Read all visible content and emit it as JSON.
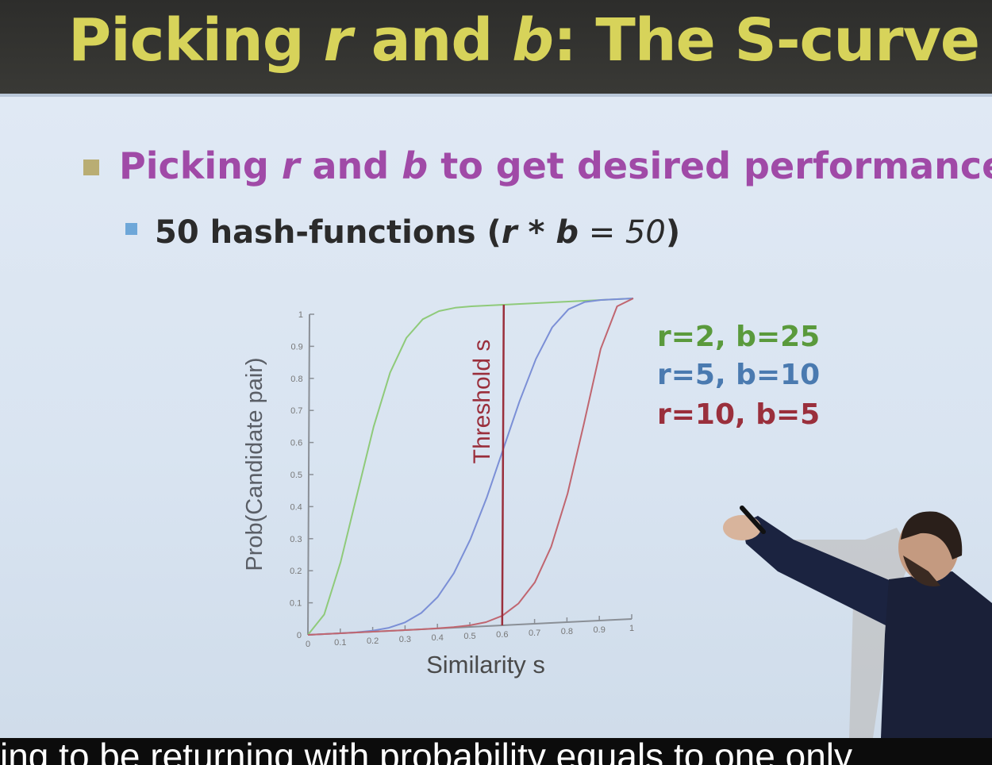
{
  "slide": {
    "title_a": "Picking ",
    "title_r": "r",
    "title_b": " and ",
    "title_bvar": "b",
    "title_c": ": The S-curve",
    "bullet1_a": "Picking ",
    "bullet1_r": "r",
    "bullet1_b": " and ",
    "bullet1_bvar": "b",
    "bullet1_c": " to get desired performance",
    "bullet2_a": "50 hash-functions (",
    "bullet2_r": "r",
    "bullet2_star": " * ",
    "bullet2_bvar": "b",
    "bullet2_eq": " = 50",
    "bullet2_close": ")"
  },
  "chart_data": {
    "type": "line",
    "xlabel": "Similarity s",
    "ylabel": "Prob(Candidate pair)",
    "xlim": [
      0,
      1
    ],
    "ylim": [
      0,
      1
    ],
    "x_ticks": [
      "0",
      "0.1",
      "0.2",
      "0.3",
      "0.4",
      "0.5",
      "0.6",
      "0.7",
      "0.8",
      "0.9",
      "1"
    ],
    "y_ticks": [
      "0",
      "0.1",
      "0.2",
      "0.3",
      "0.4",
      "0.5",
      "0.6",
      "0.7",
      "0.8",
      "0.9",
      "1"
    ],
    "x": [
      0,
      0.05,
      0.1,
      0.15,
      0.2,
      0.25,
      0.3,
      0.35,
      0.4,
      0.45,
      0.5,
      0.55,
      0.6,
      0.65,
      0.7,
      0.75,
      0.8,
      0.85,
      0.9,
      0.95,
      1
    ],
    "series": [
      {
        "name": "r=2, b=25",
        "color": "#8fca7a",
        "values": [
          0,
          0.061,
          0.222,
          0.432,
          0.64,
          0.806,
          0.912,
          0.967,
          0.99,
          0.998,
          1,
          1,
          1,
          1,
          1,
          1,
          1,
          1,
          1,
          1,
          1
        ]
      },
      {
        "name": "r=5, b=10",
        "color": "#7b8fd6",
        "values": [
          0,
          0,
          0.0001,
          0.0008,
          0.0032,
          0.0097,
          0.024,
          0.051,
          0.098,
          0.17,
          0.272,
          0.4,
          0.548,
          0.696,
          0.826,
          0.922,
          0.976,
          0.996,
          1,
          1,
          1
        ]
      },
      {
        "name": "r=10, b=5",
        "color": "#c06670",
        "values": [
          0,
          0,
          0,
          0,
          0,
          0,
          0,
          0.0001,
          0.0005,
          0.0017,
          0.0049,
          0.0124,
          0.03,
          0.0655,
          0.129,
          0.2373,
          0.401,
          0.6189,
          0.8474,
          0.9776,
          1
        ]
      }
    ],
    "threshold": {
      "label": "Threshold s",
      "x": 0.6,
      "color": "#9a2f3c"
    },
    "legend_placement": "right",
    "grid": false
  },
  "caption": {
    "text": "ing to be returning with probability equals to one only"
  }
}
